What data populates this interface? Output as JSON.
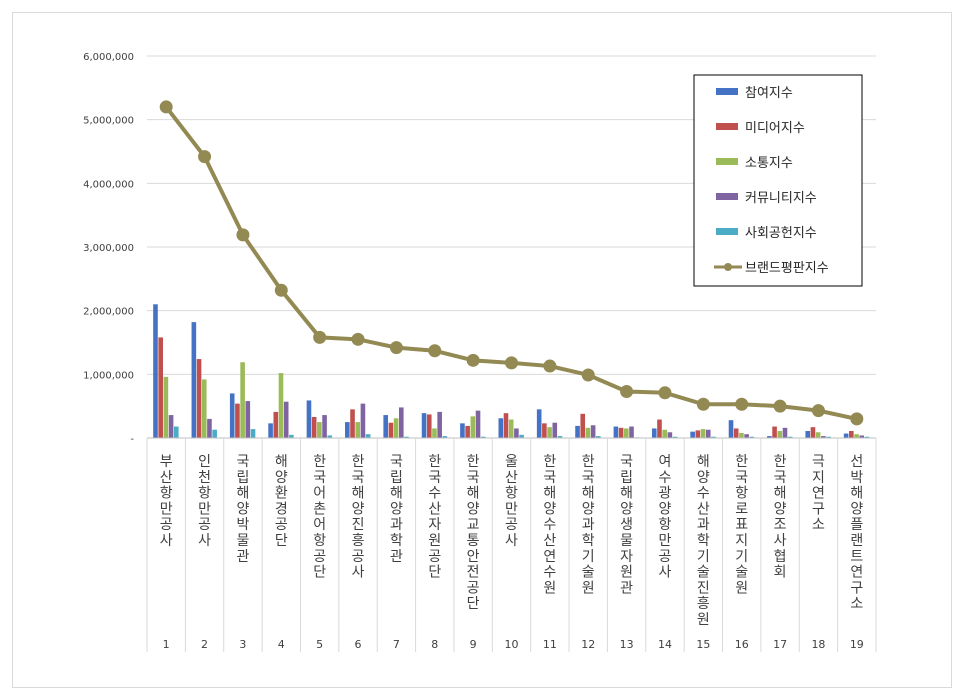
{
  "chart_data": {
    "type": "bar",
    "categories": [
      "부산항만공사",
      "인천항만공사",
      "국립해양박물관",
      "해양환경공단",
      "한국어촌어항공단",
      "한국해양진흥공사",
      "국립해양과학관",
      "한국수산자원공단",
      "한국해양교통안전공단",
      "울산항만공사",
      "한국해양수산연수원",
      "한국해양과학기술원",
      "국립해양생물자원관",
      "여수광양항만공사",
      "해양수산과학기술진흥원",
      "한국항로표지기술원",
      "한국해양조사협회",
      "극지연구소",
      "선박해양플랜트연구소"
    ],
    "ranks": [
      "1",
      "2",
      "3",
      "4",
      "5",
      "6",
      "7",
      "8",
      "9",
      "10",
      "11",
      "12",
      "13",
      "14",
      "15",
      "16",
      "17",
      "18",
      "19"
    ],
    "series": [
      {
        "name": "참여지수",
        "kind": "bar",
        "color": "#4472c4",
        "values": [
          2100000,
          1820000,
          700000,
          230000,
          590000,
          250000,
          360000,
          390000,
          230000,
          310000,
          450000,
          190000,
          180000,
          150000,
          100000,
          280000,
          30000,
          110000,
          70000
        ]
      },
      {
        "name": "미디어지수",
        "kind": "bar",
        "color": "#c0504d",
        "values": [
          1580000,
          1240000,
          540000,
          410000,
          330000,
          450000,
          240000,
          370000,
          190000,
          390000,
          230000,
          380000,
          160000,
          290000,
          120000,
          150000,
          180000,
          170000,
          110000
        ]
      },
      {
        "name": "소통지수",
        "kind": "bar",
        "color": "#9bbb59",
        "values": [
          960000,
          920000,
          1190000,
          1020000,
          250000,
          250000,
          310000,
          150000,
          340000,
          290000,
          170000,
          160000,
          150000,
          130000,
          140000,
          80000,
          110000,
          90000,
          60000
        ]
      },
      {
        "name": "커뮤니티지수",
        "kind": "bar",
        "color": "#8064a2",
        "values": [
          360000,
          300000,
          580000,
          570000,
          360000,
          540000,
          480000,
          410000,
          430000,
          150000,
          240000,
          200000,
          180000,
          90000,
          130000,
          60000,
          160000,
          30000,
          40000
        ]
      },
      {
        "name": "사회공헌지수",
        "kind": "bar",
        "color": "#4bacc6",
        "values": [
          180000,
          130000,
          140000,
          50000,
          40000,
          60000,
          20000,
          30000,
          20000,
          50000,
          30000,
          30000,
          10000,
          20000,
          20000,
          20000,
          20000,
          20000,
          20000
        ]
      },
      {
        "name": "브랜드평판지수",
        "kind": "line",
        "color": "#938953",
        "values": [
          5200000,
          4420000,
          3190000,
          2320000,
          1580000,
          1550000,
          1420000,
          1370000,
          1220000,
          1180000,
          1130000,
          990000,
          730000,
          710000,
          530000,
          530000,
          500000,
          430000,
          300000
        ]
      }
    ],
    "y_ticks": [
      "-",
      "1,000,000",
      "2,000,000",
      "3,000,000",
      "4,000,000",
      "5,000,000",
      "6,000,000"
    ],
    "ylim": [
      0,
      6000000
    ],
    "grid": true,
    "legend_position": "top-right"
  }
}
